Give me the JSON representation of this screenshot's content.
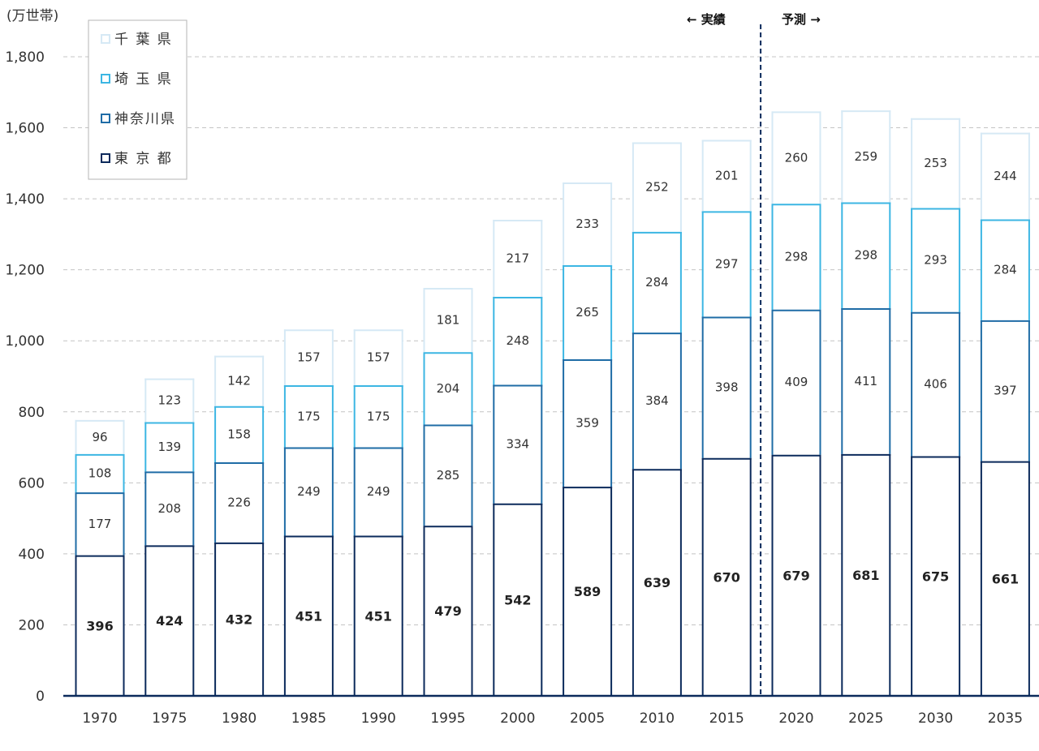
{
  "chart_data": {
    "type": "bar",
    "stacked": true,
    "unit_label": "(万世帯)",
    "categories": [
      "1970",
      "1975",
      "1980",
      "1985",
      "1990",
      "1995",
      "2000",
      "2005",
      "2010",
      "2015",
      "2020",
      "2025",
      "2030",
      "2035"
    ],
    "series": [
      {
        "name": "東 京 都",
        "color": "#0b2a5b",
        "values": [
          396,
          424,
          432,
          451,
          451,
          479,
          542,
          589,
          639,
          670,
          679,
          681,
          675,
          661
        ]
      },
      {
        "name": "神奈川県",
        "color": "#1f6ca6",
        "values": [
          177,
          208,
          226,
          249,
          249,
          285,
          334,
          359,
          384,
          398,
          409,
          411,
          406,
          397
        ]
      },
      {
        "name": "埼 玉 県",
        "color": "#3cb6e3",
        "values": [
          108,
          139,
          158,
          175,
          175,
          204,
          248,
          265,
          284,
          297,
          298,
          298,
          293,
          284
        ]
      },
      {
        "name": "千 葉 県",
        "color": "#d6e9f5",
        "values": [
          96,
          123,
          142,
          157,
          157,
          181,
          217,
          233,
          252,
          201,
          260,
          259,
          253,
          244
        ]
      }
    ],
    "ylim": [
      0,
      1800
    ],
    "yticks": [
      0,
      200,
      400,
      600,
      800,
      1000,
      1200,
      1400,
      1600,
      1800
    ],
    "ytick_labels": [
      "0",
      "200",
      "400",
      "600",
      "800",
      "1,000",
      "1,200",
      "1,400",
      "1,600",
      "1,800"
    ],
    "grid": true,
    "legend_position": "top-left",
    "annotations": {
      "actual_label": "←  実績",
      "forecast_label": "予測  →",
      "divider_between": [
        "2015",
        "2020"
      ]
    }
  }
}
